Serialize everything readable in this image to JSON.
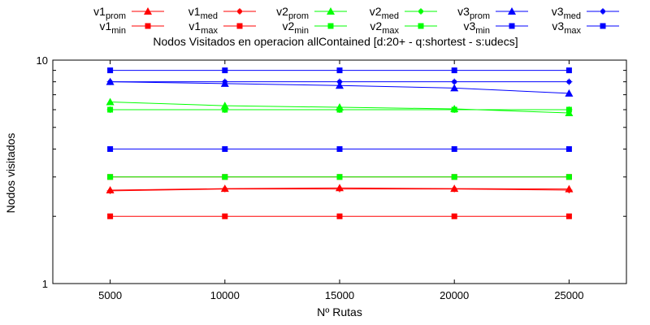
{
  "chart_data": {
    "type": "line",
    "title": "Nodos Visitados en operacion allContained [d:20+ - q:shortest - s:udecs]",
    "xlabel": "Nº Rutas",
    "ylabel": "Nodos visitados",
    "x": [
      5000,
      10000,
      15000,
      20000,
      25000
    ],
    "xlim": [
      2500,
      27500
    ],
    "xticks": [
      "5000",
      "10000",
      "15000",
      "20000",
      "25000"
    ],
    "ylim": [
      1,
      10
    ],
    "yscale": "log",
    "yticks": [
      "1",
      "10"
    ],
    "legend_position": "top",
    "series": [
      {
        "name": "v1prom",
        "base": "v1",
        "sub": "prom",
        "color": "#ff0000",
        "marker": "triangle",
        "values": [
          2.62,
          2.66,
          2.68,
          2.66,
          2.65
        ]
      },
      {
        "name": "v1med",
        "base": "v1",
        "sub": "med",
        "color": "#ff0000",
        "marker": "star",
        "values": [
          2.6,
          2.65,
          2.65,
          2.65,
          2.62
        ]
      },
      {
        "name": "v2prom",
        "base": "v2",
        "sub": "prom",
        "color": "#00ff00",
        "marker": "triangle",
        "values": [
          6.5,
          6.25,
          6.15,
          6.05,
          5.8
        ]
      },
      {
        "name": "v2med",
        "base": "v2",
        "sub": "med",
        "color": "#00ff00",
        "marker": "star",
        "values": [
          6.0,
          6.0,
          6.0,
          6.0,
          6.0
        ]
      },
      {
        "name": "v3prom",
        "base": "v3",
        "sub": "prom",
        "color": "#0000ff",
        "marker": "triangle",
        "values": [
          8.0,
          7.85,
          7.7,
          7.5,
          7.1
        ]
      },
      {
        "name": "v3med",
        "base": "v3",
        "sub": "med",
        "color": "#0000ff",
        "marker": "star",
        "values": [
          8.0,
          8.0,
          8.0,
          8.0,
          8.0
        ]
      },
      {
        "name": "v1min",
        "base": "v1",
        "sub": "min",
        "color": "#ff0000",
        "marker": "square",
        "values": [
          2,
          2,
          2,
          2,
          2
        ]
      },
      {
        "name": "v1max",
        "base": "v1",
        "sub": "max",
        "color": "#ff0000",
        "marker": "square",
        "values": [
          3,
          3,
          3,
          3,
          3
        ]
      },
      {
        "name": "v2min",
        "base": "v2",
        "sub": "min",
        "color": "#00ff00",
        "marker": "square",
        "values": [
          3,
          3,
          3,
          3,
          3
        ]
      },
      {
        "name": "v2max",
        "base": "v2",
        "sub": "max",
        "color": "#00ff00",
        "marker": "square",
        "values": [
          6,
          6,
          6,
          6,
          6
        ]
      },
      {
        "name": "v3min",
        "base": "v3",
        "sub": "min",
        "color": "#0000ff",
        "marker": "square",
        "values": [
          4,
          4,
          4,
          4,
          4
        ]
      },
      {
        "name": "v3max",
        "base": "v3",
        "sub": "max",
        "color": "#0000ff",
        "marker": "square",
        "values": [
          9,
          9,
          9,
          9,
          9
        ]
      }
    ]
  }
}
